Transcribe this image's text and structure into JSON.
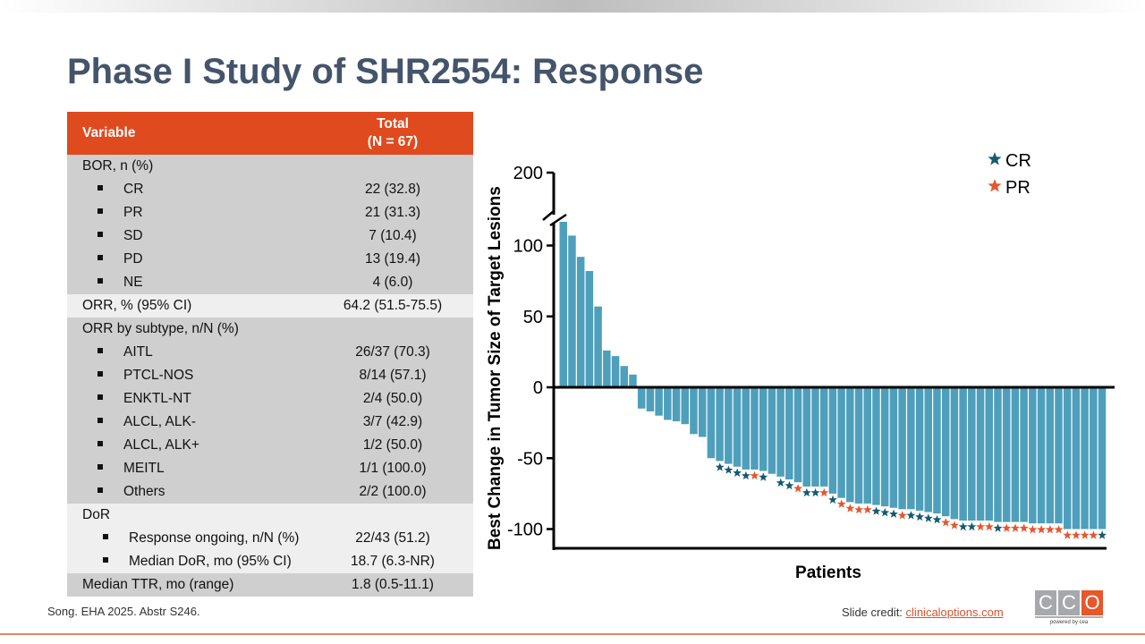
{
  "slide": {
    "title": "Phase I Study of SHR2554: Response",
    "citation": "Song. EHA 2025. Abstr S246.",
    "credit_prefix": "Slide credit: ",
    "credit_link": "clinicaloptions.com",
    "logo": {
      "letters": [
        "C",
        "C",
        "O"
      ],
      "tagline": "powered by cea",
      "colors": [
        "#a6a8ab",
        "#a6a8ab",
        "#e8562a"
      ]
    },
    "accent_color": "#e04a1f"
  },
  "table": {
    "headers": {
      "variable": "Variable",
      "total_line1": "Total",
      "total_line2": "(N = 67)"
    },
    "rows": [
      {
        "label": "BOR, n (%)",
        "value": "",
        "indent": 0,
        "shade": "dark"
      },
      {
        "label": "CR",
        "value": "22 (32.8)",
        "indent": 1,
        "shade": "dark"
      },
      {
        "label": "PR",
        "value": "21 (31.3)",
        "indent": 1,
        "shade": "dark"
      },
      {
        "label": "SD",
        "value": "7 (10.4)",
        "indent": 1,
        "shade": "dark"
      },
      {
        "label": "PD",
        "value": "13 (19.4)",
        "indent": 1,
        "shade": "dark"
      },
      {
        "label": "NE",
        "value": "4 (6.0)",
        "indent": 1,
        "shade": "dark"
      },
      {
        "label": "ORR, % (95% CI)",
        "value": "64.2 (51.5-75.5)",
        "indent": 0,
        "shade": "light"
      },
      {
        "label": "ORR by subtype, n/N (%)",
        "value": "",
        "indent": 0,
        "shade": "dark"
      },
      {
        "label": "AITL",
        "value": "26/37 (70.3)",
        "indent": 1,
        "shade": "dark"
      },
      {
        "label": "PTCL-NOS",
        "value": "8/14 (57.1)",
        "indent": 1,
        "shade": "dark"
      },
      {
        "label": "ENKTL-NT",
        "value": "2/4 (50.0)",
        "indent": 1,
        "shade": "dark"
      },
      {
        "label": "ALCL, ALK-",
        "value": "3/7 (42.9)",
        "indent": 1,
        "shade": "dark"
      },
      {
        "label": "ALCL, ALK+",
        "value": "1/2 (50.0)",
        "indent": 1,
        "shade": "dark"
      },
      {
        "label": "MEITL",
        "value": "1/1 (100.0)",
        "indent": 1,
        "shade": "dark"
      },
      {
        "label": "Others",
        "value": "2/2 (100.0)",
        "indent": 1,
        "shade": "dark"
      },
      {
        "label": "DoR",
        "value": "",
        "indent": 0,
        "shade": "light"
      },
      {
        "label": "Response ongoing, n/N (%)",
        "value": "22/43 (51.2)",
        "indent": 2,
        "shade": "light"
      },
      {
        "label": "Median DoR, mo (95% CI)",
        "value": "18.7 (6.3-NR)",
        "indent": 2,
        "shade": "light"
      },
      {
        "label": "Median TTR, mo (range)",
        "value": "1.8 (0.5-11.1)",
        "indent": 0,
        "shade": "dark"
      }
    ]
  },
  "chart_data": {
    "type": "bar",
    "title": "",
    "xlabel": "Patients",
    "ylabel": "Best Change in Tumor Size of Target Lesions",
    "ylim": [
      -100,
      200
    ],
    "axis_break": [
      110,
      190
    ],
    "yticks": [
      "200",
      "100",
      "50",
      "0",
      "-50",
      "-100"
    ],
    "ytick_values": [
      200,
      100,
      50,
      0,
      -50,
      -100
    ],
    "bar_color": "#4e9fbb",
    "legend": {
      "position": "top-right",
      "entries": [
        {
          "label": "CR",
          "marker": "star",
          "color": "#155a72"
        },
        {
          "label": "PR",
          "marker": "star",
          "color": "#e4572e"
        }
      ]
    },
    "values": [
      185,
      107,
      92,
      82,
      57,
      26,
      22,
      15,
      9,
      -15,
      -17,
      -20,
      -23,
      -24,
      -26,
      -33,
      -35,
      -50,
      -52,
      -54,
      -56,
      -58,
      -58,
      -59,
      -61,
      -63,
      -65,
      -67,
      -70,
      -70,
      -70,
      -75,
      -78,
      -81,
      -82,
      -82,
      -83,
      -84,
      -85,
      -86,
      -86,
      -87,
      -88,
      -89,
      -91,
      -93,
      -94,
      -94,
      -94,
      -94,
      -95,
      -95,
      -95,
      -95,
      -96,
      -96,
      -96,
      -96,
      -100,
      -100,
      -100,
      -100,
      -100
    ],
    "response": [
      "",
      "",
      "",
      "",
      "",
      "",
      "",
      "",
      "",
      "",
      "",
      "",
      "",
      "",
      "",
      "",
      "",
      "",
      "CR",
      "CR",
      "CR",
      "CR",
      "PR",
      "CR",
      "",
      "CR",
      "CR",
      "PR",
      "CR",
      "CR",
      "PR",
      "CR",
      "PR",
      "PR",
      "PR",
      "PR",
      "CR",
      "CR",
      "CR",
      "PR",
      "CR",
      "CR",
      "CR",
      "CR",
      "PR",
      "PR",
      "CR",
      "CR",
      "PR",
      "PR",
      "CR",
      "PR",
      "PR",
      "PR",
      "PR",
      "PR",
      "PR",
      "PR",
      "PR",
      "PR",
      "PR",
      "PR",
      "CR"
    ]
  }
}
